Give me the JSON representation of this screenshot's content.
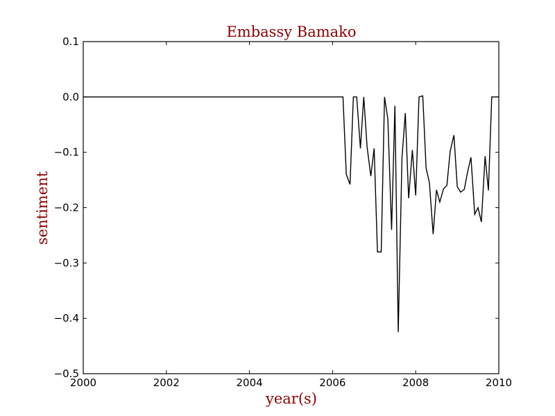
{
  "colors": {
    "label": "#8b0000",
    "line": "#000000",
    "axes": "#000000",
    "background": "#ffffff"
  },
  "chart_data": {
    "type": "line",
    "title": "Embassy Bamako",
    "xlabel": "year(s)",
    "ylabel": "sentiment",
    "xlim": [
      2000,
      2010
    ],
    "ylim": [
      -0.5,
      0.1
    ],
    "xticks": [
      2000,
      2002,
      2004,
      2006,
      2008,
      2010
    ],
    "xtick_labels": [
      "2000",
      "2002",
      "2004",
      "2006",
      "2008",
      "2010"
    ],
    "yticks": [
      0.1,
      0.0,
      -0.1,
      -0.2,
      -0.3,
      -0.4,
      -0.5
    ],
    "ytick_labels": [
      "0.1",
      "0.0",
      "−0.1",
      "−0.2",
      "−0.3",
      "−0.4",
      "−0.5"
    ],
    "grid": false,
    "legend": false,
    "series": [
      {
        "x": [
          2000.0,
          2006.25,
          2006.33,
          2006.42,
          2006.5,
          2006.58,
          2006.67,
          2006.75,
          2006.83,
          2006.92,
          2007.0,
          2007.08,
          2007.17,
          2007.25,
          2007.33,
          2007.42,
          2007.5,
          2007.58,
          2007.67,
          2007.75,
          2007.83,
          2007.92,
          2008.0,
          2008.08,
          2008.17,
          2008.25,
          2008.33,
          2008.42,
          2008.5,
          2008.58,
          2008.67,
          2008.75,
          2008.83,
          2008.92,
          2009.0,
          2009.08,
          2009.17,
          2009.25,
          2009.33,
          2009.42,
          2009.5,
          2009.58,
          2009.67,
          2009.75,
          2009.83,
          2009.92,
          2010.0
        ],
        "y": [
          0.0,
          0.0,
          -0.14,
          -0.158,
          0.0,
          0.0,
          -0.093,
          0.0,
          -0.09,
          -0.143,
          -0.093,
          -0.28,
          -0.28,
          0.0,
          -0.04,
          -0.24,
          -0.016,
          -0.425,
          -0.11,
          -0.029,
          -0.183,
          -0.096,
          -0.178,
          0.0,
          0.002,
          -0.128,
          -0.155,
          -0.248,
          -0.168,
          -0.19,
          -0.166,
          -0.16,
          -0.098,
          -0.069,
          -0.162,
          -0.172,
          -0.167,
          -0.135,
          -0.109,
          -0.212,
          -0.2,
          -0.226,
          -0.107,
          -0.169,
          0.0,
          0.0,
          0.0
        ]
      }
    ]
  }
}
